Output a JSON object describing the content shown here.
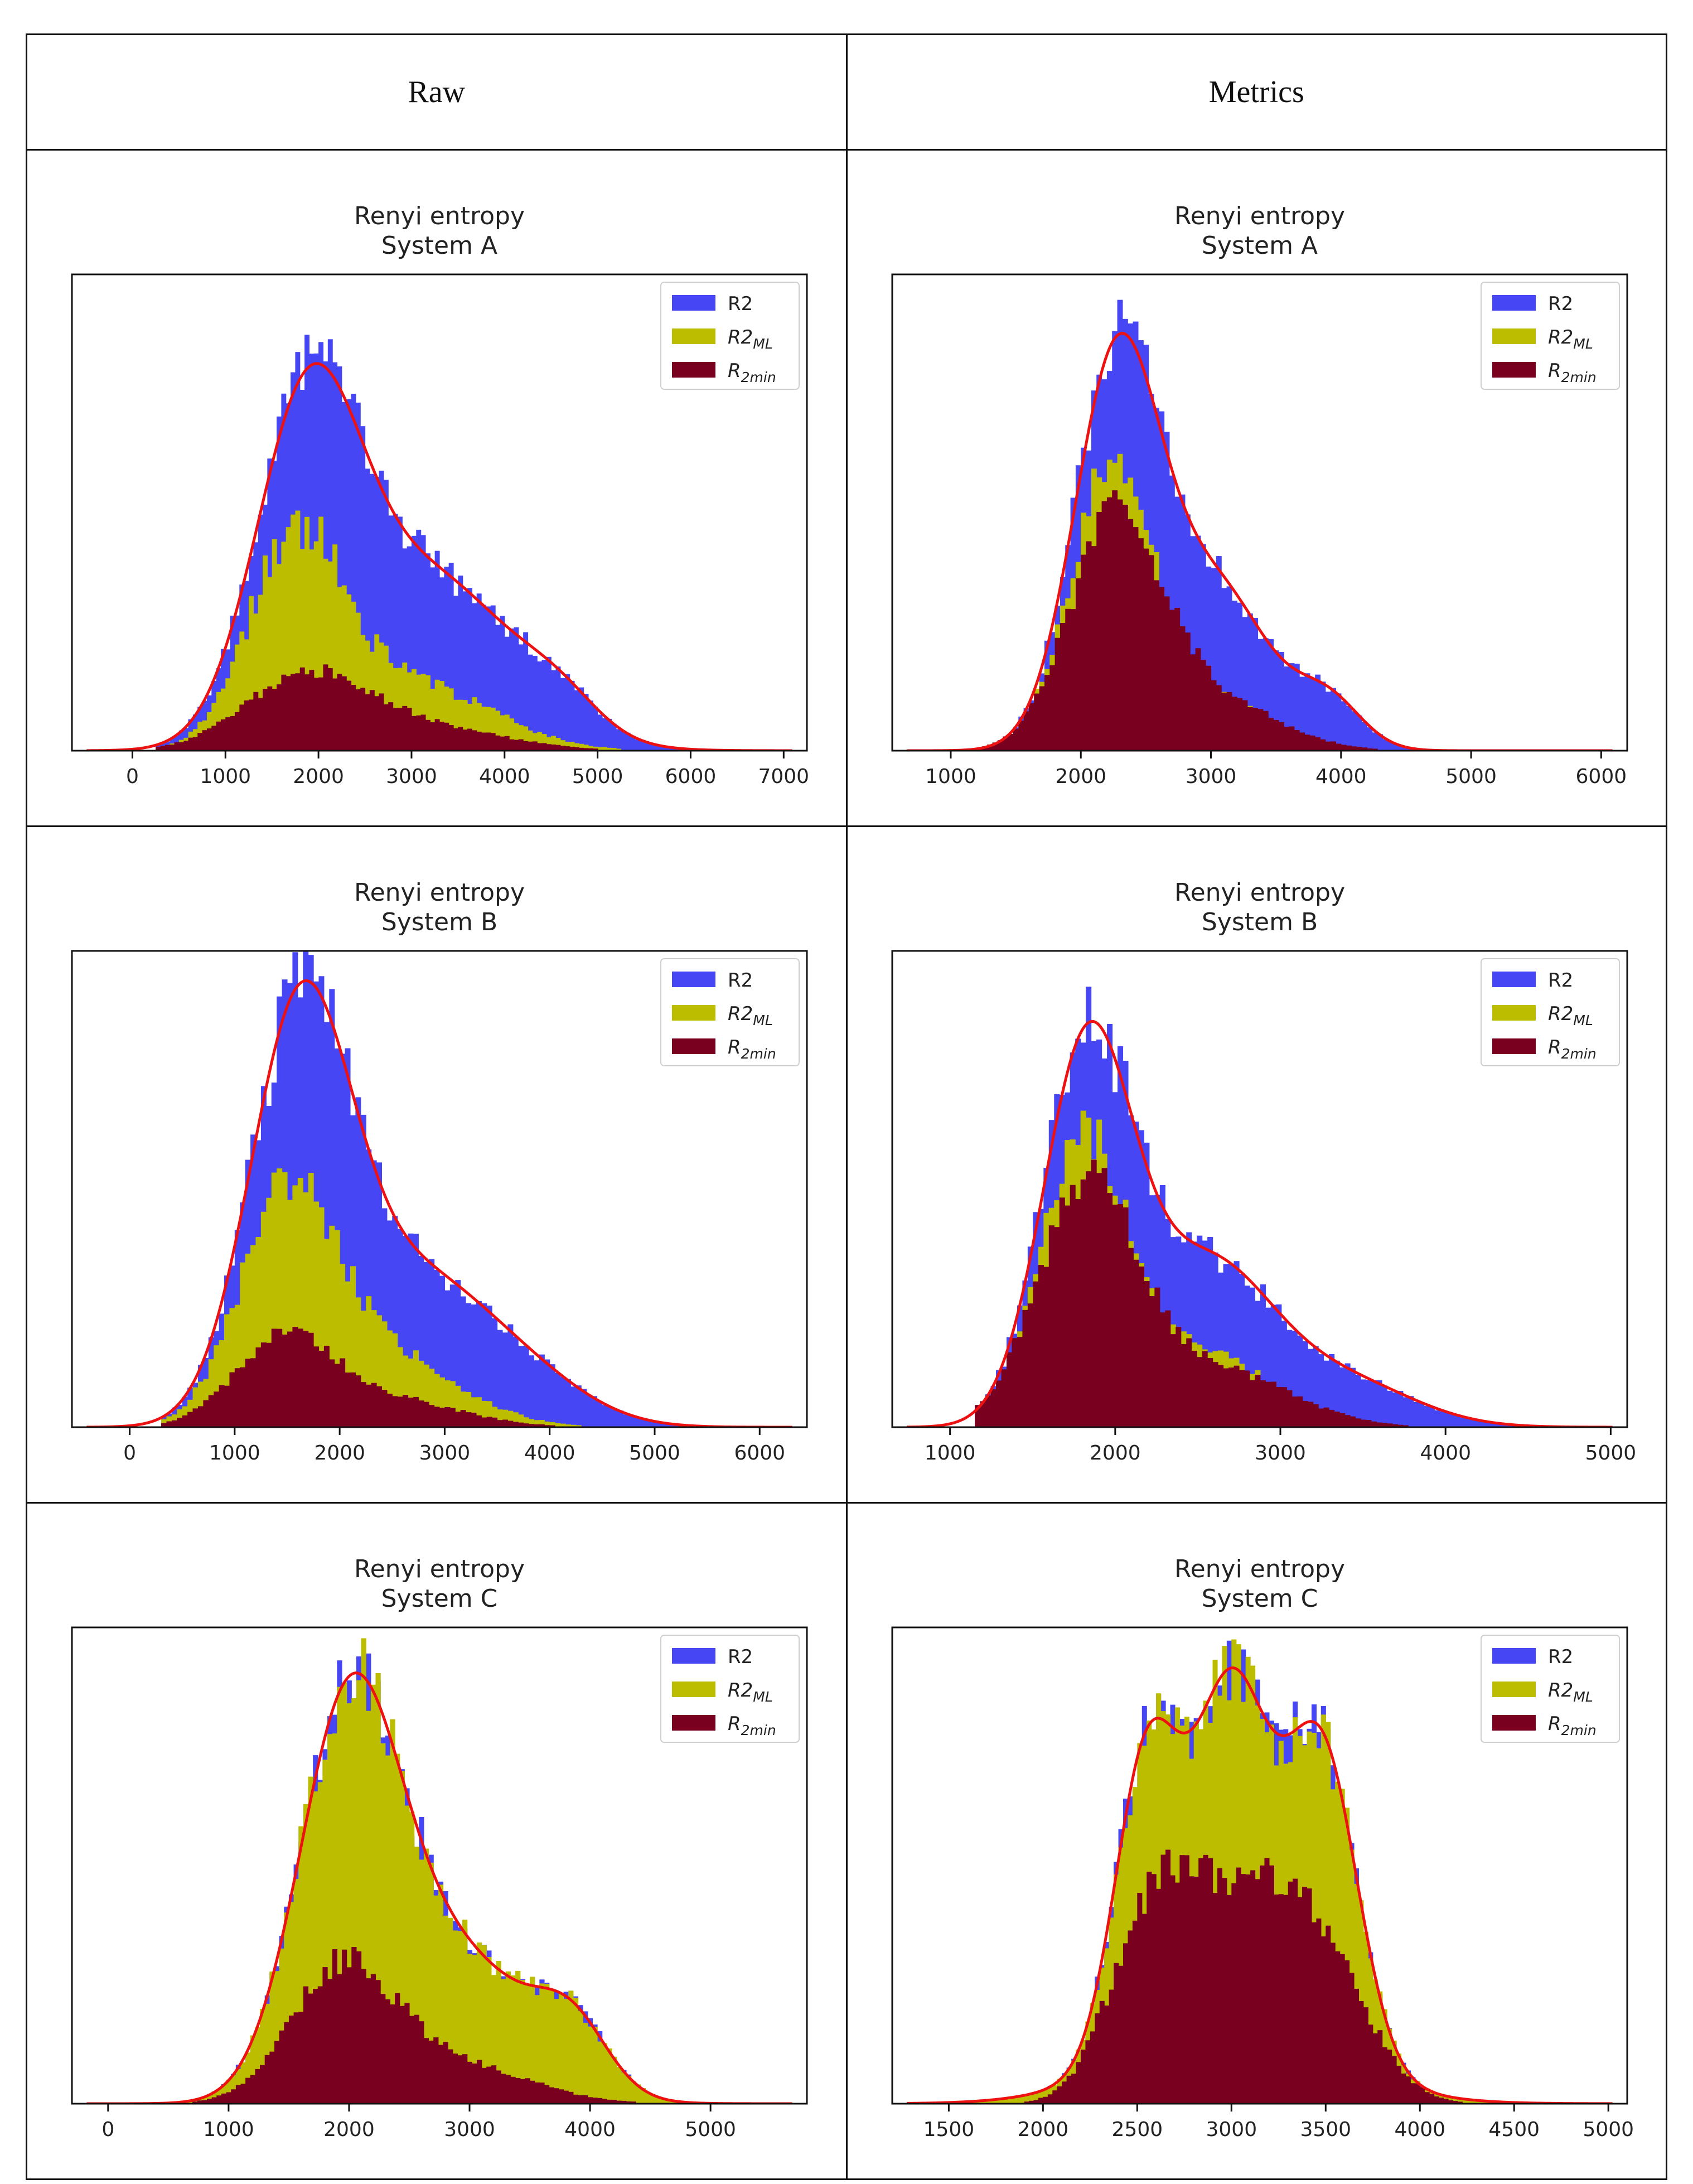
{
  "columns": [
    "Raw",
    "Metrics"
  ],
  "legend": {
    "r2": "R2",
    "r2ml_base": "R2",
    "r2ml_sub": "ML",
    "r2min_base": "R",
    "r2min_sub": "2min"
  },
  "colors": {
    "r2": "#4646f5",
    "r2ml": "#bdbd00",
    "r2min": "#7a0020",
    "kde": "#ee1111"
  },
  "chart_data": [
    {
      "type": "bar",
      "title": "Renyi entropy",
      "subtitle": "System A",
      "column": "Raw",
      "xlim": [
        -650,
        7250
      ],
      "ticks": [
        0,
        1000,
        2000,
        3000,
        4000,
        5000,
        6000,
        7000
      ],
      "bin_width": 50,
      "support": [
        250,
        6500
      ],
      "ymax": 1.0,
      "series": [
        {
          "name": "R2",
          "components": [
            [
              1880,
              560,
              0.68
            ],
            [
              3200,
              900,
              0.36
            ],
            [
              4600,
              420,
              0.06
            ]
          ],
          "noise": 0.09,
          "kde": true
        },
        {
          "name": "R2_ML",
          "components": [
            [
              1750,
              500,
              0.43
            ],
            [
              3000,
              850,
              0.14
            ]
          ],
          "noise": 0.12
        },
        {
          "name": "R_2min",
          "components": [
            [
              1850,
              650,
              0.15
            ],
            [
              3100,
              850,
              0.05
            ]
          ],
          "noise": 0.1
        }
      ]
    },
    {
      "type": "bar",
      "title": "Renyi entropy",
      "subtitle": "System A",
      "column": "Metrics",
      "xlim": [
        550,
        6200
      ],
      "ticks": [
        1000,
        2000,
        3000,
        4000,
        5000,
        6000
      ],
      "bin_width": 40,
      "support": [
        1200,
        5300
      ],
      "ymax": 1.0,
      "series": [
        {
          "name": "R2",
          "components": [
            [
              2280,
              330,
              0.82
            ],
            [
              3050,
              400,
              0.33
            ],
            [
              3900,
              260,
              0.1
            ]
          ],
          "noise": 0.09,
          "kde": true
        },
        {
          "name": "R2_ML",
          "components": [
            [
              2230,
              320,
              0.58
            ],
            [
              3000,
              420,
              0.11
            ]
          ],
          "noise": 0.09
        },
        {
          "name": "R_2min",
          "components": [
            [
              2270,
              360,
              0.48
            ],
            [
              3050,
              480,
              0.1
            ]
          ],
          "noise": 0.09
        }
      ]
    },
    {
      "type": "bar",
      "title": "Renyi entropy",
      "subtitle": "System B",
      "column": "Raw",
      "xlim": [
        -550,
        6450
      ],
      "ticks": [
        0,
        1000,
        2000,
        3000,
        4000,
        5000,
        6000
      ],
      "bin_width": 50,
      "support": [
        300,
        6000
      ],
      "ymax": 1.0,
      "series": [
        {
          "name": "R2",
          "components": [
            [
              1620,
              480,
              0.84
            ],
            [
              2700,
              700,
              0.3
            ],
            [
              3800,
              600,
              0.08
            ]
          ],
          "noise": 0.09,
          "kde": true
        },
        {
          "name": "R2_ML",
          "components": [
            [
              1500,
              450,
              0.46
            ],
            [
              2400,
              700,
              0.15
            ]
          ],
          "noise": 0.11
        },
        {
          "name": "R_2min",
          "components": [
            [
              1450,
              450,
              0.18
            ],
            [
              2400,
              700,
              0.06
            ]
          ],
          "noise": 0.11
        }
      ]
    },
    {
      "type": "bar",
      "title": "Renyi entropy",
      "subtitle": "System B",
      "column": "Metrics",
      "xlim": [
        650,
        5100
      ],
      "ticks": [
        1000,
        2000,
        3000,
        4000,
        5000
      ],
      "bin_width": 32,
      "support": [
        1150,
        4700
      ],
      "ymax": 1.0,
      "series": [
        {
          "name": "R2",
          "components": [
            [
              1830,
              270,
              0.78
            ],
            [
              2550,
              400,
              0.34
            ],
            [
              3400,
              420,
              0.09
            ]
          ],
          "noise": 0.1,
          "kde": true
        },
        {
          "name": "R2_ML",
          "components": [
            [
              1800,
              260,
              0.58
            ],
            [
              2500,
              420,
              0.16
            ]
          ],
          "noise": 0.09
        },
        {
          "name": "R_2min",
          "components": [
            [
              1830,
              300,
              0.5
            ],
            [
              2600,
              450,
              0.12
            ]
          ],
          "noise": 0.09
        }
      ]
    },
    {
      "type": "bar",
      "title": "Renyi entropy",
      "subtitle": "System C",
      "column": "Raw",
      "xlim": [
        -300,
        5800
      ],
      "ticks": [
        0,
        1000,
        2000,
        3000,
        4000,
        5000
      ],
      "bin_width": 40,
      "support": [
        500,
        5100
      ],
      "ymax": 1.0,
      "series": [
        {
          "name": "R2",
          "components": [
            [
              2000,
              420,
              0.8
            ],
            [
              2900,
              600,
              0.3
            ],
            [
              3850,
              300,
              0.13
            ]
          ],
          "noise": 0.09,
          "kde": true
        },
        {
          "name": "R2_ML",
          "components": [
            [
              2000,
              420,
              0.8
            ],
            [
              2900,
              600,
              0.3
            ],
            [
              3850,
              300,
              0.13
            ]
          ],
          "noise": 0.09
        },
        {
          "name": "R_2min",
          "components": [
            [
              1950,
              430,
              0.28
            ],
            [
              2900,
              600,
              0.08
            ]
          ],
          "noise": 0.1
        }
      ]
    },
    {
      "type": "bar",
      "title": "Renyi entropy",
      "subtitle": "System C",
      "column": "Metrics",
      "xlim": [
        1200,
        5100
      ],
      "ticks": [
        1500,
        2000,
        2500,
        3000,
        3500,
        4000,
        4500,
        5000
      ],
      "bin_width": 25,
      "support": [
        1600,
        4700
      ],
      "ymax": 1.0,
      "series": [
        {
          "name": "R2",
          "components": [
            [
              2550,
              170,
              0.62
            ],
            [
              3000,
              200,
              0.71
            ],
            [
              3480,
              190,
              0.64
            ],
            [
              3000,
              520,
              0.16
            ]
          ],
          "noise": 0.08,
          "kde": true
        },
        {
          "name": "R2_ML",
          "components": [
            [
              2550,
              170,
              0.61
            ],
            [
              3000,
              200,
              0.7
            ],
            [
              3480,
              190,
              0.63
            ],
            [
              3000,
              520,
              0.16
            ]
          ],
          "noise": 0.08
        },
        {
          "name": "R_2min",
          "components": [
            [
              2570,
              220,
              0.38
            ],
            [
              3000,
              250,
              0.35
            ],
            [
              3450,
              260,
              0.33
            ]
          ],
          "noise": 0.1
        }
      ]
    }
  ]
}
